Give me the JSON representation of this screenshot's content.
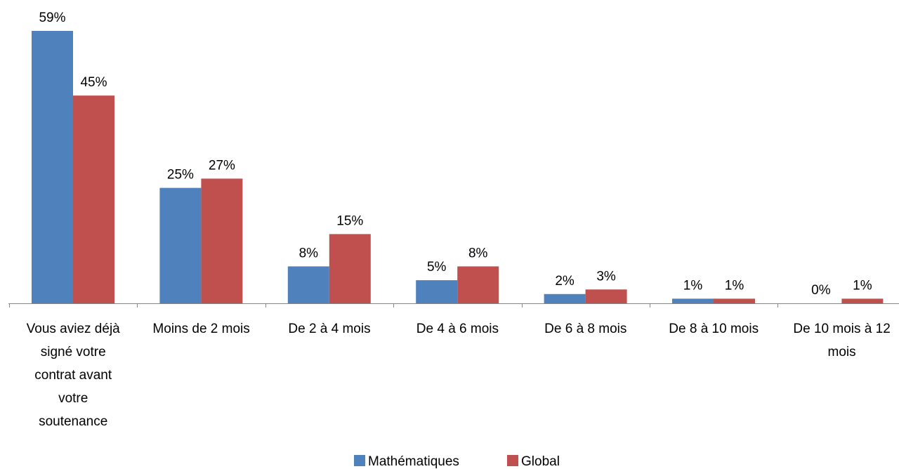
{
  "chart_data": {
    "type": "bar",
    "categories": [
      "Vous aviez déjà signé votre contrat avant votre soutenance",
      "Moins de 2 mois",
      "De 2 à 4 mois",
      "De 4 à 6 mois",
      "De 6 à 8 mois",
      "De 8 à 10 mois",
      "De 10 mois à 12 mois"
    ],
    "category_lines": [
      [
        "Vous aviez déjà",
        "signé votre",
        "contrat avant",
        "votre",
        "soutenance"
      ],
      [
        "Moins de 2 mois"
      ],
      [
        "De 2 à 4 mois"
      ],
      [
        "De 4 à 6 mois"
      ],
      [
        "De 6 à 8 mois"
      ],
      [
        "De 8 à 10 mois"
      ],
      [
        "De 10 mois à 12",
        "mois"
      ]
    ],
    "series": [
      {
        "name": "Mathématiques",
        "color": "#4F81BD",
        "values": [
          59,
          25,
          8,
          5,
          2,
          1,
          0
        ],
        "labels": [
          "59%",
          "25%",
          "8%",
          "5%",
          "2%",
          "1%",
          "0%"
        ]
      },
      {
        "name": "Global",
        "color": "#C0504D",
        "values": [
          45,
          27,
          15,
          8,
          3,
          1,
          1
        ],
        "labels": [
          "45%",
          "27%",
          "15%",
          "8%",
          "3%",
          "1%",
          "1%"
        ]
      }
    ],
    "ylim": [
      0,
      59
    ],
    "grid": false,
    "legend_position": "bottom"
  }
}
